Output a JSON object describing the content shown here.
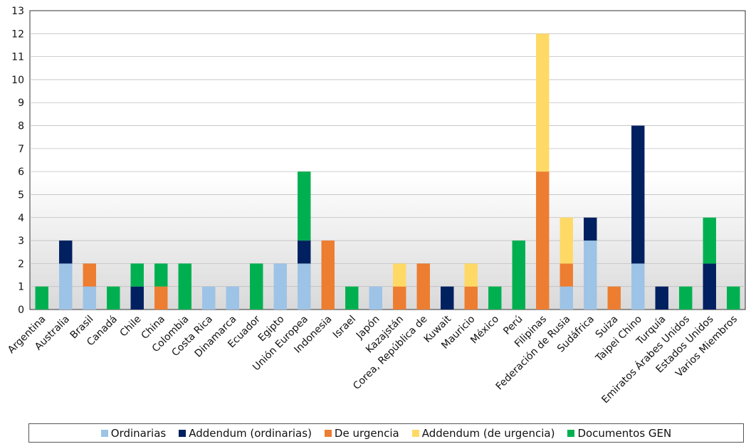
{
  "chart_data": {
    "type": "bar",
    "stacked": true,
    "categories": [
      "Argentina",
      "Australia",
      "Brasil",
      "Canadá",
      "Chile",
      "China",
      "Colombia",
      "Costa Rica",
      "Dinamarca",
      "Ecuador",
      "Egipto",
      "Unión Europea",
      "Indonesia",
      "Israel",
      "Japón",
      "Kazajstán",
      "Corea, República de",
      "Kuwait",
      "Mauricio",
      "México",
      "Perú",
      "Filipinas",
      "Federación de Rusia",
      "Sudáfrica",
      "Suiza",
      "Taipei Chino",
      "Turquía",
      "Emiratos Árabes Unidos",
      "Estados Unidos",
      "Varios Miembros"
    ],
    "series": [
      {
        "name": "Ordinarias",
        "color": "#9dc3e6",
        "values": [
          0,
          2,
          1,
          0,
          0,
          0,
          0,
          1,
          1,
          0,
          2,
          2,
          0,
          0,
          1,
          0,
          0,
          0,
          0,
          0,
          0,
          0,
          1,
          3,
          0,
          2,
          0,
          0,
          0,
          0
        ]
      },
      {
        "name": "Addendum (ordinarias)",
        "color": "#002060",
        "values": [
          0,
          1,
          0,
          0,
          1,
          0,
          0,
          0,
          0,
          0,
          0,
          1,
          0,
          0,
          0,
          0,
          0,
          1,
          0,
          0,
          0,
          0,
          0,
          1,
          0,
          6,
          1,
          0,
          2,
          0
        ]
      },
      {
        "name": "De urgencia",
        "color": "#ed7d31",
        "values": [
          0,
          0,
          1,
          0,
          0,
          1,
          0,
          0,
          0,
          0,
          0,
          0,
          3,
          0,
          0,
          1,
          2,
          0,
          1,
          0,
          0,
          6,
          1,
          0,
          1,
          0,
          0,
          0,
          0,
          0
        ]
      },
      {
        "name": "Addendum (de urgencia)",
        "color": "#ffd966",
        "values": [
          0,
          0,
          0,
          0,
          0,
          0,
          0,
          0,
          0,
          0,
          0,
          0,
          0,
          0,
          0,
          1,
          0,
          0,
          1,
          0,
          0,
          6,
          2,
          0,
          0,
          0,
          0,
          0,
          0,
          0
        ]
      },
      {
        "name": "Documentos GEN",
        "color": "#00b050",
        "values": [
          1,
          0,
          0,
          1,
          1,
          1,
          2,
          0,
          0,
          2,
          0,
          3,
          0,
          1,
          0,
          0,
          0,
          0,
          0,
          1,
          3,
          0,
          0,
          0,
          0,
          0,
          0,
          1,
          2,
          1
        ]
      }
    ],
    "ylim": [
      0,
      13
    ],
    "yticks": [
      0,
      1,
      2,
      3,
      4,
      5,
      6,
      7,
      8,
      9,
      10,
      11,
      12,
      13
    ],
    "grid": true,
    "legend_position": "bottom"
  }
}
